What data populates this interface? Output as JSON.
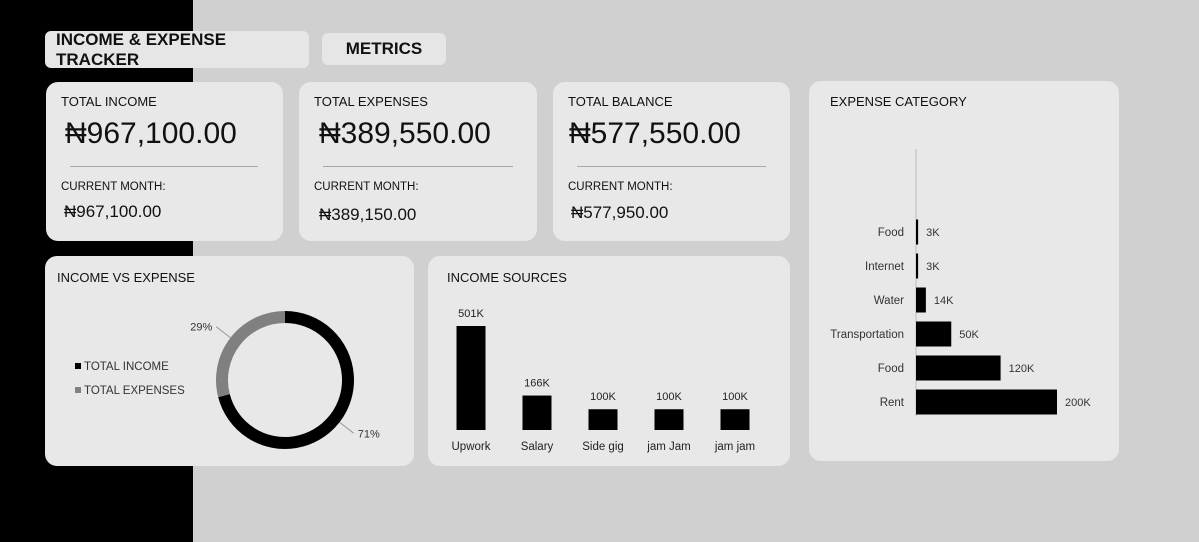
{
  "header": {
    "title": "INCOME & EXPENSE TRACKER",
    "tab": "METRICS"
  },
  "kpis": [
    {
      "title": "TOTAL INCOME",
      "amount": "₦967,100.00",
      "current_label": "CURRENT MONTH:",
      "current_amount": "₦967,100.00"
    },
    {
      "title": "TOTAL EXPENSES",
      "amount": "₦389,550.00",
      "current_label": "CURRENT MONTH:",
      "current_amount": "₦389,150.00"
    },
    {
      "title": "TOTAL BALANCE",
      "amount": "₦577,550.00",
      "current_label": "CURRENT MONTH:",
      "current_amount": "₦577,950.00"
    }
  ],
  "colors": {
    "background": "#d0d0d0",
    "card": "#e8e8e8",
    "band": "#000000",
    "income": "#000000",
    "expenses": "#808080"
  },
  "chart_data": [
    {
      "type": "pie",
      "title": "INCOME VS EXPENSE",
      "donut": true,
      "legend_position": "left",
      "slices": [
        {
          "name": "TOTAL INCOME",
          "value": 71,
          "label": "71%",
          "color": "#000000"
        },
        {
          "name": "TOTAL EXPENSES",
          "value": 29,
          "label": "29%",
          "color": "#808080"
        }
      ]
    },
    {
      "type": "bar",
      "title": "INCOME SOURCES",
      "orientation": "vertical",
      "categories": [
        "Upwork",
        "Salary",
        "Side gig",
        "jam Jam",
        "jam jam"
      ],
      "values": [
        501,
        166,
        100,
        100,
        100
      ],
      "labels": [
        "501K",
        "166K",
        "100K",
        "100K",
        "100K"
      ],
      "unit": "K"
    },
    {
      "type": "bar",
      "title": "EXPENSE CATEGORY",
      "orientation": "horizontal",
      "categories": [
        "Food",
        "Internet",
        "Water",
        "Transportation",
        "Food",
        "Rent"
      ],
      "values": [
        3,
        3,
        14,
        50,
        120,
        200
      ],
      "labels": [
        "3K",
        "3K",
        "14K",
        "50K",
        "120K",
        "200K"
      ],
      "unit": "K"
    }
  ]
}
